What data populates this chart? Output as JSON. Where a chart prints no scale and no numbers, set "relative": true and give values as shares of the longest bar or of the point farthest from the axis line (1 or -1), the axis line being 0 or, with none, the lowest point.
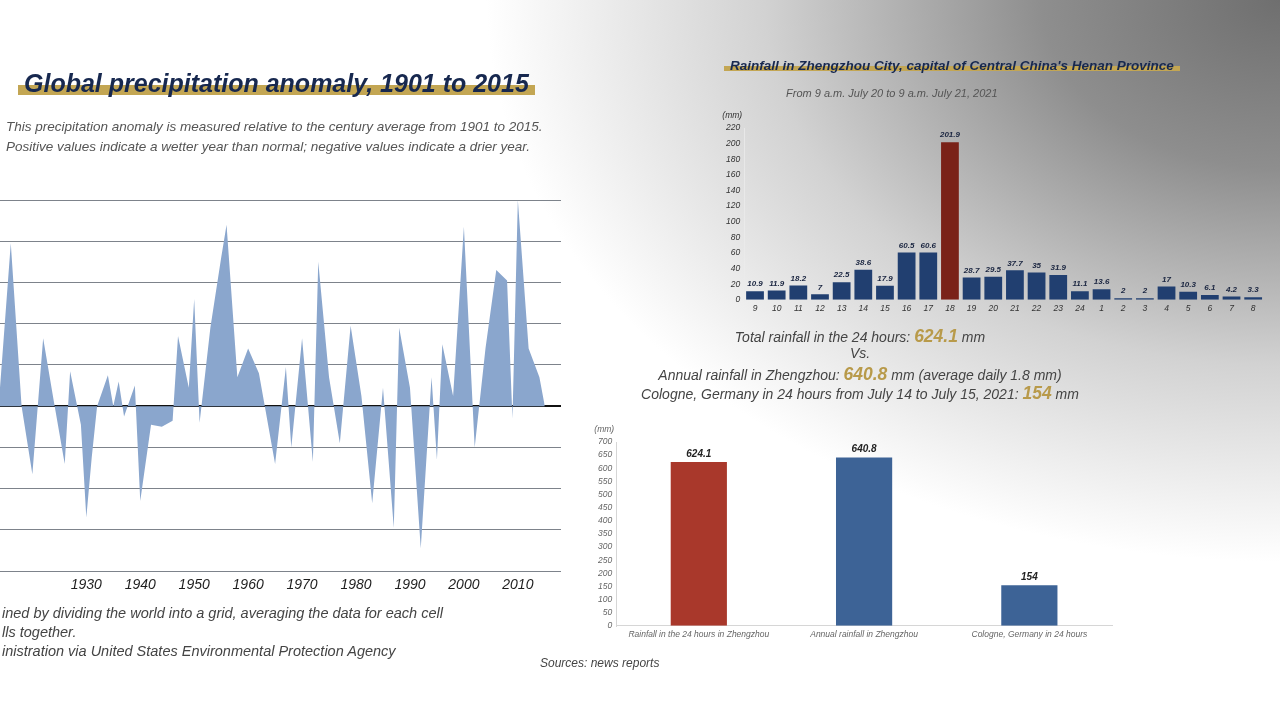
{
  "chart_data": [
    {
      "type": "area",
      "title": "Global precipitation anomaly, 1901 to 2015",
      "subtitle": "This precipitation anomaly is measured relative to the century average from 1901 to 2015.\nPositive values indicate a wetter year than normal; negative values indicate a drier year.",
      "x": [
        1914,
        1916,
        1918,
        1920,
        1922,
        1924,
        1926,
        1927,
        1929,
        1930,
        1931,
        1932,
        1934,
        1935,
        1936,
        1937,
        1939,
        1940,
        1942,
        1944,
        1946,
        1947,
        1949,
        1950,
        1951,
        1953,
        1955,
        1956,
        1958,
        1960,
        1962,
        1965,
        1967,
        1968,
        1970,
        1972,
        1973,
        1975,
        1977,
        1979,
        1981,
        1983,
        1985,
        1987,
        1988,
        1990,
        1992,
        1994,
        1995,
        1996,
        1998,
        2000,
        2002,
        2004,
        2006,
        2008,
        2009,
        2010,
        2012,
        2014,
        2015
      ],
      "values": [
        0.09,
        0.79,
        0,
        -0.33,
        0.33,
        0.02,
        -0.28,
        0.17,
        -0.09,
        -0.54,
        -0.25,
        0,
        0.15,
        0,
        0.12,
        -0.05,
        0.1,
        -0.46,
        -0.09,
        -0.1,
        -0.07,
        0.34,
        0.09,
        0.52,
        -0.08,
        0.38,
        0.72,
        0.88,
        0.14,
        0.28,
        0.16,
        -0.28,
        0.19,
        -0.2,
        0.33,
        -0.27,
        0.7,
        0.14,
        -0.18,
        0.39,
        0.05,
        -0.47,
        0.09,
        -0.59,
        0.38,
        0.09,
        -0.69,
        0.14,
        -0.26,
        0.3,
        0.05,
        0.87,
        -0.2,
        0.28,
        0.66,
        0.61,
        -0.06,
        1,
        0.28,
        0.14,
        0
      ],
      "color": "#8aa6cd",
      "relative": true,
      "xlim": [
        1914,
        2018
      ],
      "xticks": [
        1930,
        1940,
        1950,
        1960,
        1970,
        1980,
        1990,
        2000,
        2010
      ],
      "grid": "y",
      "annotations": [
        "ined by dividing the world into a grid, averaging the data for each cell",
        "lls together.",
        "inistration via United States Environmental Protection Agency"
      ]
    },
    {
      "type": "bar",
      "title": "Rainfall in Zhengzhou City, capital of Central China's Henan Province",
      "subtitle": "From 9 a.m. July 20 to 9 a.m. July 21, 2021",
      "ylabel": "(mm)",
      "categories": [
        "9",
        "10",
        "11",
        "12",
        "13",
        "14",
        "15",
        "16",
        "17",
        "18",
        "19",
        "20",
        "21",
        "22",
        "23",
        "24",
        "1",
        "2",
        "3",
        "4",
        "5",
        "6",
        "7",
        "8"
      ],
      "values": [
        10.9,
        11.9,
        18.2,
        7,
        22.5,
        38.6,
        17.9,
        60.5,
        60.6,
        201.9,
        28.7,
        29.5,
        37.7,
        35,
        31.9,
        11.1,
        13.6,
        2,
        2,
        17,
        10.3,
        6.1,
        4.2,
        3.3
      ],
      "colors": [
        "#213f70",
        "#213f70",
        "#213f70",
        "#213f70",
        "#213f70",
        "#213f70",
        "#213f70",
        "#213f70",
        "#213f70",
        "#7a2218",
        "#213f70",
        "#213f70",
        "#213f70",
        "#213f70",
        "#213f70",
        "#213f70",
        "#213f70",
        "#213f70",
        "#213f70",
        "#213f70",
        "#213f70",
        "#213f70",
        "#213f70",
        "#213f70"
      ],
      "ylim": [
        0,
        220
      ],
      "yticks": [
        0,
        20,
        40,
        60,
        80,
        100,
        120,
        140,
        160,
        180,
        200,
        220
      ],
      "data_labels": true
    },
    {
      "type": "bar",
      "ylabel": "(mm)",
      "categories": [
        "Rainfall in the 24 hours in Zhengzhou",
        "Annual rainfall in Zhengzhou",
        "Cologne, Germany in 24 hours"
      ],
      "values": [
        624.1,
        640.8,
        154
      ],
      "colors": [
        "#a9382b",
        "#3d6396",
        "#3d6396"
      ],
      "ylim": [
        0,
        700
      ],
      "yticks": [
        0,
        50,
        100,
        150,
        200,
        250,
        300,
        350,
        400,
        450,
        500,
        550,
        600,
        650,
        700
      ],
      "data_labels": true,
      "annotations": [
        "Total rainfall in the 24 hours: 624.1 mm",
        "Vs.",
        "Annual rainfall in Zhengzhou: 640.8 mm (average daily 1.8 mm)",
        "Cologne, Germany in 24 hours from July 14 to July 15, 2021: 154 mm",
        "Sources: news reports"
      ]
    }
  ]
}
